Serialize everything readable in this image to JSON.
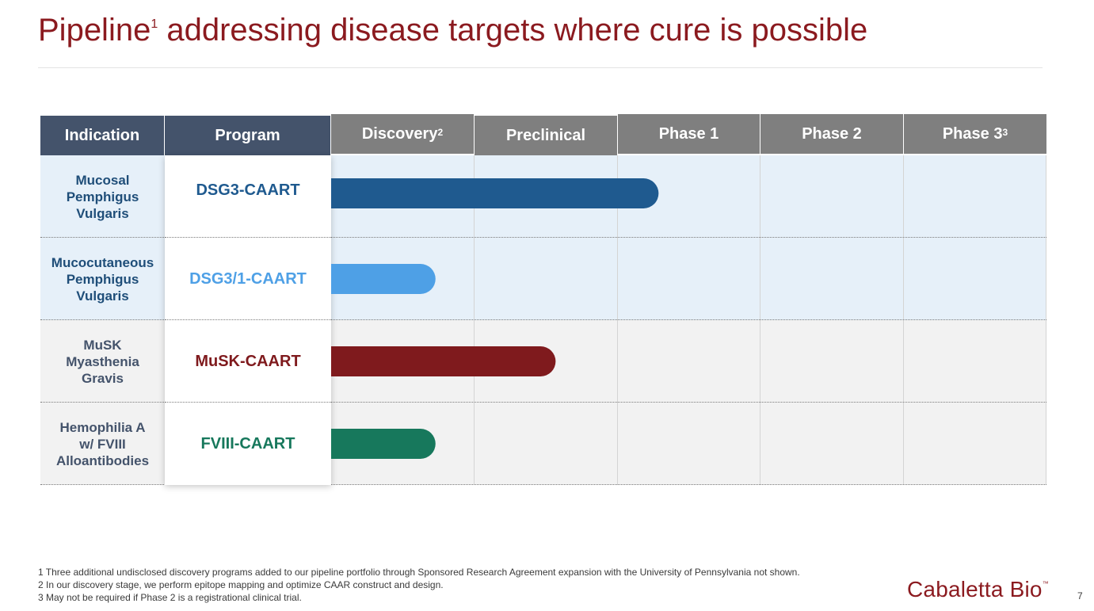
{
  "slide": {
    "title": "Pipeline",
    "title_sup": "1",
    "title_rest": " addressing disease targets where cure is possible",
    "page_number": "7",
    "logo_text": "Cabaletta Bio",
    "logo_tm": "™"
  },
  "colors": {
    "title": "#8b1a1f",
    "header_dark": "#44536b",
    "header_grey": "#7f7f7f",
    "row_blue_bg": "#e6f0f9",
    "row_grey_bg": "#f2f2f2"
  },
  "table": {
    "headers": [
      {
        "label": "Indication",
        "sup": ""
      },
      {
        "label": "Program",
        "sup": ""
      },
      {
        "label": "Discovery",
        "sup": "2"
      },
      {
        "label": "Preclinical",
        "sup": ""
      },
      {
        "label": "Phase 1",
        "sup": ""
      },
      {
        "label": "Phase 2",
        "sup": ""
      },
      {
        "label": "Phase 3",
        "sup": "3"
      }
    ]
  },
  "chart_data": {
    "type": "bar",
    "orientation": "horizontal",
    "stages": [
      "Discovery",
      "Preclinical",
      "Phase 1",
      "Phase 2",
      "Phase 3"
    ],
    "rows": [
      {
        "indication": "Mucosal\nPemphigus\nVulgaris",
        "program": "DSG3-CAART",
        "progress": 2.29,
        "color": "#1f5a8f",
        "indication_color": "#1f4e79",
        "background": "#e6f0f9"
      },
      {
        "indication": "Mucocutaneous\nPemphigus\nVulgaris",
        "program": "DSG3/1-CAART",
        "progress": 0.73,
        "color": "#4ea0e6",
        "indication_color": "#1f4e79",
        "background": "#e6f0f9"
      },
      {
        "indication": "MuSK\nMyasthenia\nGravis",
        "program": "MuSK-CAART",
        "progress": 1.57,
        "color": "#7f1a1d",
        "indication_color": "#44536b",
        "background": "#f2f2f2"
      },
      {
        "indication": "Hemophilia A\nw/ FVIII\nAlloantibodies",
        "program": "FVIII-CAART",
        "progress": 0.73,
        "color": "#17785c",
        "indication_color": "#44536b",
        "background": "#f2f2f2"
      }
    ]
  },
  "footnotes": [
    "1 Three additional undisclosed discovery programs added to our pipeline portfolio through Sponsored Research Agreement expansion with the University of Pennsylvania not shown.",
    "2 In our discovery stage, we perform epitope mapping and optimize CAAR construct and design.",
    "3 May not be required if Phase 2 is a registrational clinical trial."
  ]
}
